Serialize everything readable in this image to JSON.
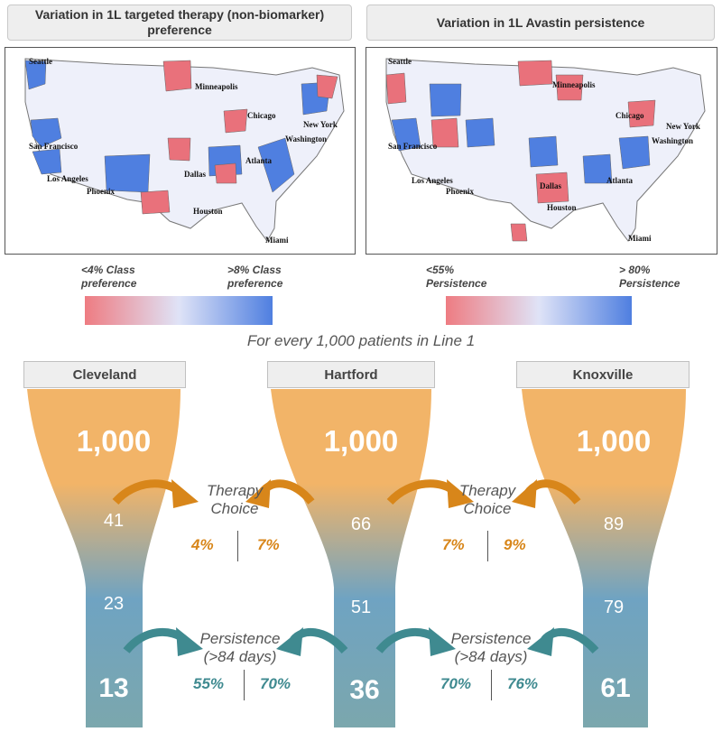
{
  "panels": {
    "left": {
      "title": "Variation in 1L targeted therapy (non-biomarker) preference",
      "legend_low": "<4% Class preference",
      "legend_high": ">8% Class preference"
    },
    "right": {
      "title": "Variation in 1L Avastin persistence",
      "legend_low": "<55% Persistence",
      "legend_high": "> 80% Persistence"
    }
  },
  "map_cities": [
    "Seattle",
    "Minneapolis",
    "Chicago",
    "New York",
    "Washington",
    "San Francisco",
    "Los Angeles",
    "Phoenix",
    "Dallas",
    "Atlanta",
    "Houston",
    "Miami"
  ],
  "colors": {
    "low": "#e9717b",
    "mid": "#dfe3f5",
    "high": "#4f7fe0",
    "orange": "#f2b468",
    "teal": "#7ba7ad"
  },
  "subtitle": "For every 1,000 patients in Line 1",
  "cities": [
    {
      "name": "Cleveland",
      "start": "1,000",
      "therapy": "41",
      "persist": "23",
      "end": "13"
    },
    {
      "name": "Hartford",
      "start": "1,000",
      "therapy": "66",
      "persist": "51",
      "end": "36"
    },
    {
      "name": "Knoxville",
      "start": "1,000",
      "therapy": "89",
      "persist": "79",
      "end": "61"
    }
  ],
  "stages": {
    "therapy": {
      "label1": "Therapy",
      "label2": "Choice"
    },
    "persistence": {
      "label1": "Persistence",
      "label2": "(>84 days)"
    }
  },
  "comparisons": [
    {
      "therapy_a": "4%",
      "therapy_b": "7%",
      "persist_a": "55%",
      "persist_b": "70%"
    },
    {
      "therapy_a": "7%",
      "therapy_b": "9%",
      "persist_a": "70%",
      "persist_b": "76%"
    }
  ]
}
